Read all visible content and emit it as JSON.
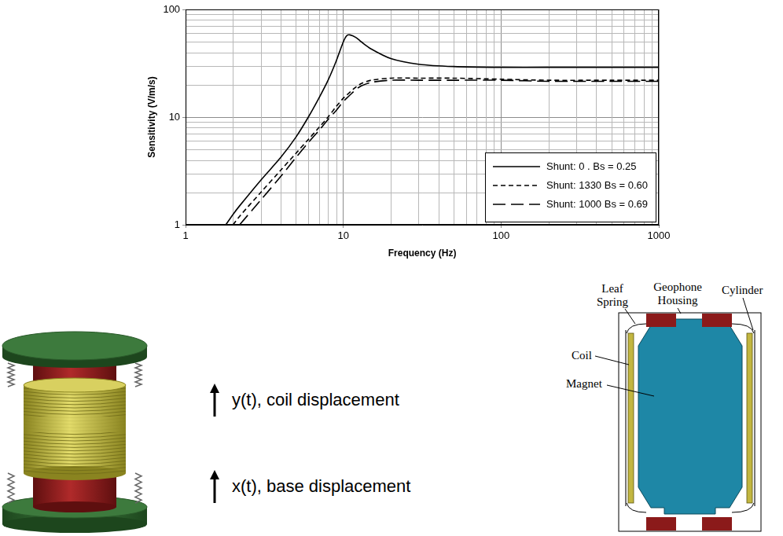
{
  "chart_data": {
    "type": "line",
    "x_label": "Frequency (Hz)",
    "y_label": "Sensitivity (V/m/s)",
    "x": [
      1.8,
      2,
      2.2,
      3,
      4,
      5,
      6,
      7,
      8,
      9,
      10,
      10.5,
      11,
      12,
      13,
      15,
      20,
      30,
      50,
      100,
      200,
      500,
      1000
    ],
    "series": [
      {
        "name": "Shunt: 0 . Bs = 0.25",
        "color": "#000000",
        "line_style": "solid",
        "values": [
          1,
          1.25,
          1.5,
          2.6,
          4.2,
          6.5,
          10,
          15,
          22,
          33,
          50,
          57,
          58,
          55,
          50,
          43,
          35,
          31,
          29.5,
          29,
          29,
          29,
          29
        ]
      },
      {
        "name": "Shunt: 1330 Bs = 0.60",
        "color": "#000000",
        "line_style": "dashed",
        "values": [
          null,
          1,
          1.2,
          2,
          3.2,
          4.6,
          6.2,
          8,
          10,
          12.5,
          15,
          16,
          17,
          19,
          20.5,
          22,
          23,
          23,
          23,
          22.5,
          22,
          22,
          22
        ]
      },
      {
        "name": "Shunt: 1000 Bs = 0.69",
        "color": "#000000",
        "line_style": "long_dash",
        "values": [
          null,
          null,
          1,
          1.7,
          2.8,
          4.2,
          5.8,
          7.5,
          9.5,
          11.5,
          14,
          15,
          16,
          18,
          19.5,
          21,
          22,
          22,
          22,
          22,
          21.5,
          21.5,
          21.5
        ]
      }
    ],
    "xlim": [
      1,
      1000
    ],
    "ylim": [
      1,
      100
    ],
    "xticks": [
      1,
      10,
      100,
      1000
    ],
    "yticks": [
      1,
      10,
      100
    ],
    "log": true,
    "grid": true,
    "legend": "lower right"
  },
  "illustration": {
    "labels": [
      "y(t), coil displacement",
      "x(t), base displacement"
    ]
  },
  "cross_section": {
    "labels": [
      "Leaf Spring",
      "Geophone Housing",
      "Cylinder",
      "Coil",
      "Magnet"
    ]
  }
}
